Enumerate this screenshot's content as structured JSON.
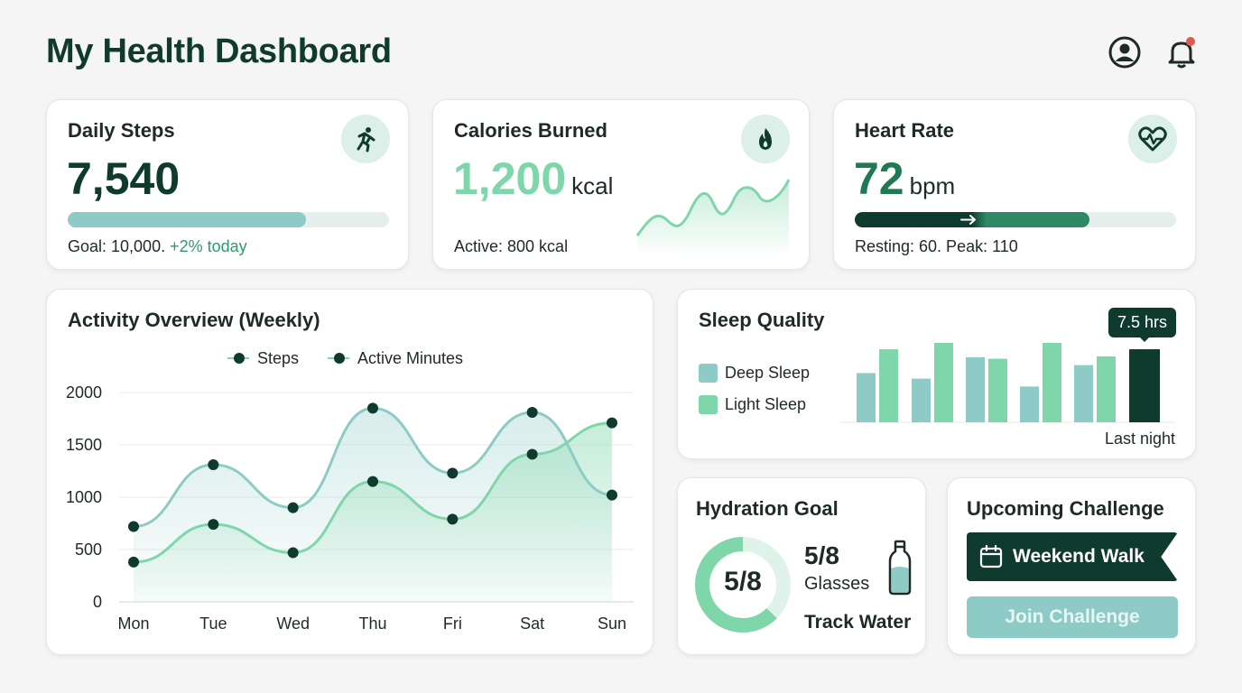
{
  "header": {
    "title": "My Health Dashboard",
    "profile_icon": "user-circle-icon",
    "bell_icon": "bell-icon"
  },
  "colors": {
    "dark_green": "#0f3a2e",
    "teal": "#8ecbc6",
    "mint": "#7fd6aa",
    "accent_text": "#2e9a68",
    "notification": "#e05a4e"
  },
  "steps_card": {
    "title": "Daily Steps",
    "value": "7,540",
    "icon": "running-icon",
    "progress": 0.754,
    "goal_text": "Goal: 10,000.",
    "change_text": "+2% today"
  },
  "calories_card": {
    "title": "Calories Burned",
    "value": "1,200",
    "unit": "kcal",
    "icon": "flame-icon",
    "active_text": "Active: 800 kcal"
  },
  "heart_card": {
    "title": "Heart Rate",
    "value": "72",
    "unit": "bpm",
    "icon": "heart-pulse-icon",
    "level": 0.73,
    "range_text": "Resting: 60. Peak: 110"
  },
  "activity_card": {
    "title": "Activity Overview (Weekly)",
    "chart_data": {
      "type": "line",
      "categories": [
        "Mon",
        "Tue",
        "Wed",
        "Thu",
        "Fri",
        "Sat",
        "Sun"
      ],
      "series": [
        {
          "name": "Steps",
          "values": [
            720,
            1310,
            900,
            1850,
            1230,
            1810,
            1020
          ]
        },
        {
          "name": "Active Minutes",
          "values": [
            380,
            740,
            470,
            1150,
            790,
            1410,
            1710
          ]
        }
      ],
      "yticks": [
        "0",
        "500",
        "1000",
        "1500",
        "2000"
      ],
      "ylim": [
        0,
        2000
      ],
      "legend": "top-center",
      "grid": true
    }
  },
  "sleep_card": {
    "title": "Sleep Quality",
    "legend": [
      "Deep Sleep",
      "Light Sleep"
    ],
    "tooltip": "7.5 hrs",
    "footer": "Last night",
    "chart_data": {
      "type": "bar",
      "series": [
        {
          "name": "Deep Sleep",
          "values": [
            0.62,
            0.55,
            0.82,
            0.45,
            0.72
          ]
        },
        {
          "name": "Light Sleep",
          "values": [
            0.92,
            1.0,
            0.8,
            1.0,
            0.83
          ]
        }
      ],
      "last_night": 0.92
    }
  },
  "hydration_card": {
    "title": "Hydration Goal",
    "ring_label": "5/8",
    "progress": 0.625,
    "count": "5/8",
    "count_label": "Glasses",
    "action": "Track Water",
    "icon": "water-bottle-icon"
  },
  "challenge_card": {
    "title": "Upcoming Challenge",
    "name": "Weekend Walk",
    "icon": "calendar-icon",
    "button": "Join Challenge"
  }
}
